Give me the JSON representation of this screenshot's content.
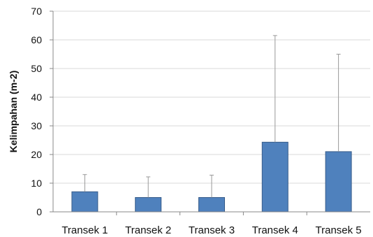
{
  "chart_data": {
    "type": "bar",
    "title": "",
    "xlabel": "",
    "ylabel": "Kelimpahan (m-2)",
    "categories": [
      "Transek 1",
      "Transek 2",
      "Transek 3",
      "Transek 4",
      "Transek 5"
    ],
    "series": [
      {
        "values": [
          7,
          5,
          5,
          24.3,
          21
        ],
        "error_upper": [
          13,
          12.2,
          12.8,
          61.5,
          55
        ]
      }
    ],
    "ylim": [
      0,
      70
    ],
    "yticks": [
      0,
      10,
      20,
      30,
      40,
      50,
      60,
      70
    ],
    "grid": true,
    "legend": "none",
    "colors": {
      "bar_fill": "#4f81bd",
      "bar_stroke": "#385d8a",
      "gridline": "#d9d9d9",
      "axis": "#888888",
      "error_bar": "#999999"
    }
  }
}
